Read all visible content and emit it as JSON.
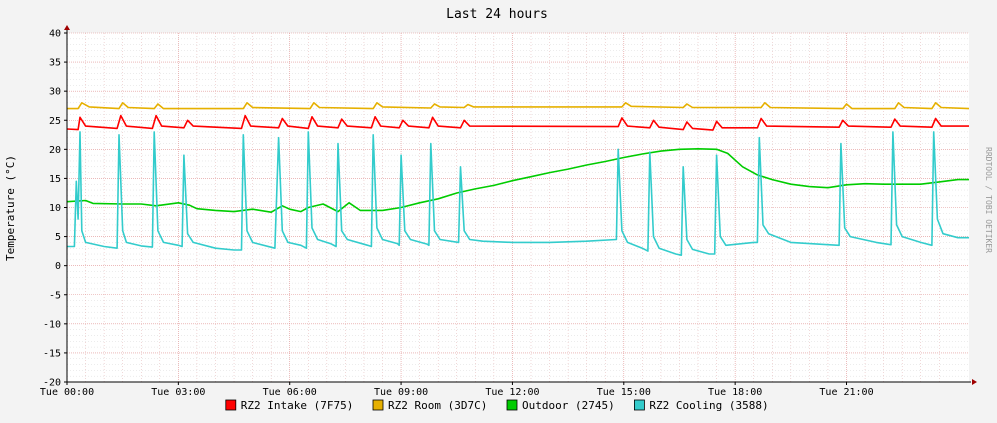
{
  "chart_data": {
    "type": "line",
    "title": "Last 24 hours",
    "ylabel": "Temperature (°C)",
    "watermark": "RRDTOOL / TOBI OETIKER",
    "x_unit": "hours",
    "xlim": [
      0,
      24.3
    ],
    "ylim": [
      -20,
      40
    ],
    "y_ticks": [
      40,
      35,
      30,
      25,
      20,
      15,
      10,
      5,
      0,
      -5,
      -10,
      -15,
      -20
    ],
    "x_ticks": [
      {
        "x": 0,
        "label": "Tue 00:00"
      },
      {
        "x": 3,
        "label": "Tue 03:00"
      },
      {
        "x": 6,
        "label": "Tue 06:00"
      },
      {
        "x": 9,
        "label": "Tue 09:00"
      },
      {
        "x": 12,
        "label": "Tue 12:00"
      },
      {
        "x": 15,
        "label": "Tue 15:00"
      },
      {
        "x": 18,
        "label": "Tue 18:00"
      },
      {
        "x": 21,
        "label": "Tue 21:00"
      }
    ],
    "grid": true,
    "legend_position": "bottom",
    "series": [
      {
        "name": "RZ2 Intake (7F75)",
        "color": "#ff0000",
        "points": [
          [
            0,
            23.5
          ],
          [
            0.3,
            23.4
          ],
          [
            0.35,
            25.5
          ],
          [
            0.5,
            24.0
          ],
          [
            1.35,
            23.6
          ],
          [
            1.45,
            25.8
          ],
          [
            1.6,
            24.0
          ],
          [
            2.3,
            23.6
          ],
          [
            2.4,
            25.8
          ],
          [
            2.55,
            24.0
          ],
          [
            3.15,
            23.7
          ],
          [
            3.25,
            25.0
          ],
          [
            3.4,
            24.0
          ],
          [
            4.7,
            23.6
          ],
          [
            4.8,
            25.8
          ],
          [
            4.95,
            24.0
          ],
          [
            5.7,
            23.7
          ],
          [
            5.8,
            25.3
          ],
          [
            5.95,
            24.0
          ],
          [
            6.5,
            23.6
          ],
          [
            6.6,
            25.6
          ],
          [
            6.75,
            24.0
          ],
          [
            7.3,
            23.7
          ],
          [
            7.4,
            25.2
          ],
          [
            7.55,
            24.0
          ],
          [
            8.2,
            23.7
          ],
          [
            8.3,
            25.6
          ],
          [
            8.45,
            24.0
          ],
          [
            8.95,
            23.7
          ],
          [
            9.05,
            25.0
          ],
          [
            9.2,
            24.0
          ],
          [
            9.75,
            23.7
          ],
          [
            9.85,
            25.5
          ],
          [
            10.0,
            24.0
          ],
          [
            10.6,
            23.7
          ],
          [
            10.7,
            25.0
          ],
          [
            10.85,
            24.0
          ],
          [
            14.85,
            23.9
          ],
          [
            14.95,
            25.4
          ],
          [
            15.1,
            24.0
          ],
          [
            15.7,
            23.7
          ],
          [
            15.8,
            25.0
          ],
          [
            15.95,
            23.8
          ],
          [
            16.6,
            23.4
          ],
          [
            16.7,
            24.7
          ],
          [
            16.85,
            23.6
          ],
          [
            17.4,
            23.3
          ],
          [
            17.5,
            24.8
          ],
          [
            17.65,
            23.7
          ],
          [
            18.6,
            23.7
          ],
          [
            18.7,
            25.3
          ],
          [
            18.85,
            24.0
          ],
          [
            20.8,
            23.8
          ],
          [
            20.9,
            25.0
          ],
          [
            21.05,
            24.0
          ],
          [
            22.2,
            23.8
          ],
          [
            22.3,
            25.2
          ],
          [
            22.45,
            24.0
          ],
          [
            23.3,
            23.8
          ],
          [
            23.4,
            25.3
          ],
          [
            23.55,
            24.0
          ],
          [
            24.3,
            24.0
          ]
        ]
      },
      {
        "name": "RZ2 Room (3D7C)",
        "color": "#e6b000",
        "points": [
          [
            0,
            27.0
          ],
          [
            0.3,
            27.0
          ],
          [
            0.4,
            28.0
          ],
          [
            0.6,
            27.3
          ],
          [
            1.4,
            27.0
          ],
          [
            1.5,
            28.0
          ],
          [
            1.65,
            27.2
          ],
          [
            2.35,
            27.0
          ],
          [
            2.45,
            27.8
          ],
          [
            2.6,
            27.0
          ],
          [
            4.75,
            27.0
          ],
          [
            4.85,
            28.0
          ],
          [
            5.0,
            27.2
          ],
          [
            6.55,
            27.0
          ],
          [
            6.65,
            28.0
          ],
          [
            6.8,
            27.2
          ],
          [
            8.25,
            27.0
          ],
          [
            8.35,
            28.0
          ],
          [
            8.5,
            27.3
          ],
          [
            9.8,
            27.1
          ],
          [
            9.9,
            27.8
          ],
          [
            10.05,
            27.3
          ],
          [
            10.7,
            27.2
          ],
          [
            10.8,
            27.7
          ],
          [
            10.95,
            27.3
          ],
          [
            14.95,
            27.3
          ],
          [
            15.05,
            28.0
          ],
          [
            15.2,
            27.4
          ],
          [
            16.6,
            27.2
          ],
          [
            16.7,
            27.8
          ],
          [
            16.85,
            27.2
          ],
          [
            18.7,
            27.2
          ],
          [
            18.8,
            28.0
          ],
          [
            18.95,
            27.2
          ],
          [
            20.9,
            27.0
          ],
          [
            21.0,
            27.8
          ],
          [
            21.15,
            27.0
          ],
          [
            22.3,
            27.0
          ],
          [
            22.4,
            28.0
          ],
          [
            22.55,
            27.2
          ],
          [
            23.3,
            27.0
          ],
          [
            23.4,
            28.0
          ],
          [
            23.55,
            27.2
          ],
          [
            24.3,
            27.0
          ]
        ]
      },
      {
        "name": "Outdoor (2745)",
        "color": "#00cc00",
        "points": [
          [
            0,
            11.0
          ],
          [
            0.5,
            11.2
          ],
          [
            0.7,
            10.7
          ],
          [
            1.5,
            10.6
          ],
          [
            2.0,
            10.6
          ],
          [
            2.4,
            10.3
          ],
          [
            3.0,
            10.8
          ],
          [
            3.3,
            10.4
          ],
          [
            3.5,
            9.8
          ],
          [
            4.0,
            9.5
          ],
          [
            4.5,
            9.3
          ],
          [
            5.0,
            9.7
          ],
          [
            5.5,
            9.2
          ],
          [
            5.8,
            10.3
          ],
          [
            6.0,
            9.7
          ],
          [
            6.3,
            9.3
          ],
          [
            6.5,
            10.0
          ],
          [
            6.9,
            10.6
          ],
          [
            7.3,
            9.3
          ],
          [
            7.6,
            10.8
          ],
          [
            7.9,
            9.5
          ],
          [
            8.5,
            9.5
          ],
          [
            9.0,
            10.0
          ],
          [
            9.5,
            10.8
          ],
          [
            10.0,
            11.5
          ],
          [
            10.5,
            12.5
          ],
          [
            11.0,
            13.2
          ],
          [
            11.5,
            13.8
          ],
          [
            12.0,
            14.6
          ],
          [
            12.5,
            15.3
          ],
          [
            13.0,
            16.0
          ],
          [
            13.5,
            16.6
          ],
          [
            14.0,
            17.3
          ],
          [
            14.5,
            17.9
          ],
          [
            15.0,
            18.6
          ],
          [
            15.5,
            19.2
          ],
          [
            16.0,
            19.7
          ],
          [
            16.5,
            20.0
          ],
          [
            17.0,
            20.1
          ],
          [
            17.5,
            20.0
          ],
          [
            17.8,
            19.3
          ],
          [
            18.2,
            17.0
          ],
          [
            18.6,
            15.6
          ],
          [
            19.0,
            14.8
          ],
          [
            19.5,
            14.0
          ],
          [
            20.0,
            13.6
          ],
          [
            20.5,
            13.4
          ],
          [
            21.0,
            13.9
          ],
          [
            21.5,
            14.1
          ],
          [
            22.0,
            14.0
          ],
          [
            22.5,
            14.0
          ],
          [
            23.0,
            14.0
          ],
          [
            23.5,
            14.4
          ],
          [
            24.0,
            14.8
          ],
          [
            24.3,
            14.8
          ]
        ]
      },
      {
        "name": "RZ2 Cooling (3588)",
        "color": "#33cccc",
        "points": [
          [
            0,
            3.3
          ],
          [
            0.2,
            3.3
          ],
          [
            0.25,
            14.5
          ],
          [
            0.3,
            8.0
          ],
          [
            0.35,
            23.0
          ],
          [
            0.4,
            6.0
          ],
          [
            0.5,
            4.0
          ],
          [
            1.0,
            3.3
          ],
          [
            1.35,
            3.0
          ],
          [
            1.4,
            22.5
          ],
          [
            1.5,
            6.0
          ],
          [
            1.6,
            4.0
          ],
          [
            2.0,
            3.4
          ],
          [
            2.3,
            3.2
          ],
          [
            2.35,
            23.0
          ],
          [
            2.45,
            6.0
          ],
          [
            2.6,
            4.0
          ],
          [
            3.0,
            3.5
          ],
          [
            3.1,
            3.3
          ],
          [
            3.15,
            19.0
          ],
          [
            3.25,
            5.5
          ],
          [
            3.4,
            4.0
          ],
          [
            4.0,
            3.0
          ],
          [
            4.5,
            2.7
          ],
          [
            4.7,
            2.7
          ],
          [
            4.75,
            22.5
          ],
          [
            4.85,
            6.0
          ],
          [
            5.0,
            4.0
          ],
          [
            5.6,
            3.0
          ],
          [
            5.7,
            22.0
          ],
          [
            5.8,
            6.0
          ],
          [
            5.95,
            4.0
          ],
          [
            6.3,
            3.5
          ],
          [
            6.45,
            3.0
          ],
          [
            6.5,
            23.0
          ],
          [
            6.6,
            6.5
          ],
          [
            6.75,
            4.5
          ],
          [
            7.1,
            3.8
          ],
          [
            7.25,
            3.3
          ],
          [
            7.3,
            21.0
          ],
          [
            7.4,
            6.0
          ],
          [
            7.55,
            4.5
          ],
          [
            8.1,
            3.5
          ],
          [
            8.2,
            3.3
          ],
          [
            8.25,
            22.5
          ],
          [
            8.35,
            6.5
          ],
          [
            8.5,
            4.5
          ],
          [
            8.9,
            3.8
          ],
          [
            8.95,
            3.5
          ],
          [
            9.0,
            19.0
          ],
          [
            9.1,
            6.0
          ],
          [
            9.25,
            4.5
          ],
          [
            9.7,
            3.7
          ],
          [
            9.75,
            3.5
          ],
          [
            9.8,
            21.0
          ],
          [
            9.9,
            6.0
          ],
          [
            10.05,
            4.5
          ],
          [
            10.55,
            4.0
          ],
          [
            10.6,
            17.0
          ],
          [
            10.7,
            6.0
          ],
          [
            10.85,
            4.5
          ],
          [
            11.2,
            4.2
          ],
          [
            12.0,
            4.0
          ],
          [
            13.0,
            4.0
          ],
          [
            14.0,
            4.2
          ],
          [
            14.8,
            4.5
          ],
          [
            14.85,
            20.0
          ],
          [
            14.95,
            6.0
          ],
          [
            15.1,
            4.0
          ],
          [
            15.5,
            3.0
          ],
          [
            15.65,
            2.5
          ],
          [
            15.7,
            19.5
          ],
          [
            15.8,
            5.0
          ],
          [
            15.95,
            3.0
          ],
          [
            16.4,
            2.0
          ],
          [
            16.55,
            1.8
          ],
          [
            16.6,
            17.0
          ],
          [
            16.7,
            4.5
          ],
          [
            16.85,
            2.8
          ],
          [
            17.3,
            2.0
          ],
          [
            17.45,
            2.0
          ],
          [
            17.5,
            19.0
          ],
          [
            17.6,
            5.0
          ],
          [
            17.75,
            3.5
          ],
          [
            18.5,
            4.0
          ],
          [
            18.6,
            4.0
          ],
          [
            18.65,
            22.0
          ],
          [
            18.75,
            7.0
          ],
          [
            18.9,
            5.5
          ],
          [
            19.5,
            4.0
          ],
          [
            20.5,
            3.6
          ],
          [
            20.8,
            3.5
          ],
          [
            20.85,
            21.0
          ],
          [
            20.95,
            6.5
          ],
          [
            21.1,
            5.0
          ],
          [
            21.8,
            4.0
          ],
          [
            22.2,
            3.6
          ],
          [
            22.25,
            23.0
          ],
          [
            22.35,
            7.0
          ],
          [
            22.5,
            5.0
          ],
          [
            23.0,
            4.0
          ],
          [
            23.3,
            3.5
          ],
          [
            23.35,
            23.0
          ],
          [
            23.45,
            8.0
          ],
          [
            23.6,
            5.5
          ],
          [
            24.0,
            4.8
          ],
          [
            24.3,
            4.8
          ]
        ]
      }
    ]
  }
}
